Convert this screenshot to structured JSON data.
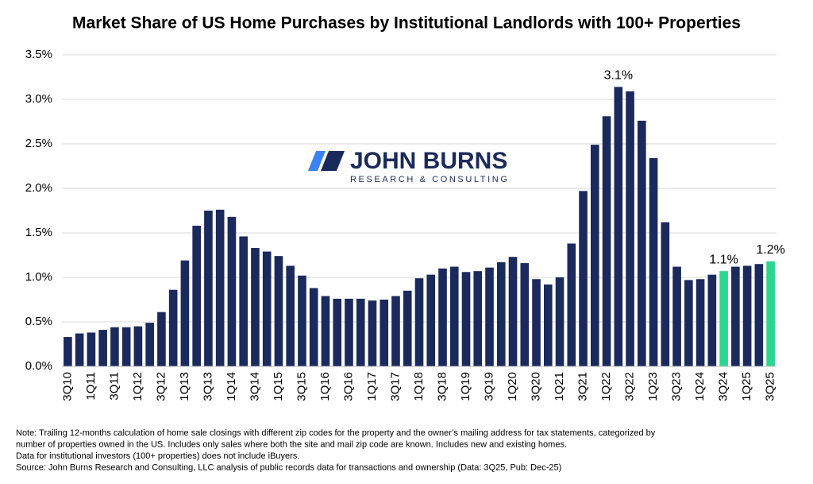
{
  "chart_data": {
    "type": "bar",
    "title": "Market Share of US Home Purchases by Institutional Landlords with 100+ Properties",
    "categories": [
      "3Q10",
      null,
      "1Q11",
      null,
      "3Q11",
      null,
      "1Q12",
      null,
      "3Q12",
      null,
      "1Q13",
      null,
      "3Q13",
      null,
      "1Q14",
      null,
      "3Q14",
      null,
      "1Q15",
      null,
      "3Q15",
      null,
      "1Q16",
      null,
      "3Q16",
      null,
      "1Q17",
      null,
      "3Q17",
      null,
      "1Q18",
      null,
      "3Q18",
      null,
      "1Q19",
      null,
      "3Q19",
      null,
      "1Q20",
      null,
      "3Q20",
      null,
      "1Q21",
      null,
      "3Q21",
      null,
      "1Q22",
      null,
      "3Q22",
      null,
      "1Q23",
      null,
      "3Q23",
      null,
      "1Q24",
      null,
      "3Q24",
      null,
      "1Q25",
      null,
      "3Q25"
    ],
    "values": [
      0.33,
      0.37,
      0.38,
      0.41,
      0.44,
      0.44,
      0.45,
      0.49,
      0.61,
      0.86,
      1.19,
      1.58,
      1.75,
      1.76,
      1.68,
      1.46,
      1.33,
      1.29,
      1.24,
      1.13,
      1.02,
      0.88,
      0.79,
      0.76,
      0.76,
      0.76,
      0.74,
      0.75,
      0.79,
      0.85,
      0.99,
      1.03,
      1.1,
      1.12,
      1.06,
      1.07,
      1.11,
      1.17,
      1.23,
      1.16,
      0.98,
      0.92,
      1.0,
      1.38,
      1.97,
      2.49,
      2.81,
      3.14,
      3.09,
      2.76,
      2.34,
      1.62,
      1.12,
      0.97,
      0.98,
      1.03,
      1.07,
      1.12,
      1.13,
      1.15,
      1.18
    ],
    "value_labels": [
      null,
      null,
      null,
      null,
      null,
      null,
      null,
      null,
      null,
      null,
      null,
      null,
      null,
      null,
      null,
      null,
      null,
      null,
      null,
      null,
      null,
      null,
      null,
      null,
      null,
      null,
      null,
      null,
      null,
      null,
      null,
      null,
      null,
      null,
      null,
      null,
      null,
      null,
      null,
      null,
      null,
      null,
      null,
      null,
      null,
      null,
      null,
      "3.1%",
      null,
      null,
      null,
      null,
      null,
      null,
      null,
      null,
      "1.1%",
      null,
      null,
      null,
      "1.2%"
    ],
    "colors": [
      "#1b2a5c",
      "#1b2a5c",
      "#1b2a5c",
      "#1b2a5c",
      "#1b2a5c",
      "#1b2a5c",
      "#1b2a5c",
      "#1b2a5c",
      "#1b2a5c",
      "#1b2a5c",
      "#1b2a5c",
      "#1b2a5c",
      "#1b2a5c",
      "#1b2a5c",
      "#1b2a5c",
      "#1b2a5c",
      "#1b2a5c",
      "#1b2a5c",
      "#1b2a5c",
      "#1b2a5c",
      "#1b2a5c",
      "#1b2a5c",
      "#1b2a5c",
      "#1b2a5c",
      "#1b2a5c",
      "#1b2a5c",
      "#1b2a5c",
      "#1b2a5c",
      "#1b2a5c",
      "#1b2a5c",
      "#1b2a5c",
      "#1b2a5c",
      "#1b2a5c",
      "#1b2a5c",
      "#1b2a5c",
      "#1b2a5c",
      "#1b2a5c",
      "#1b2a5c",
      "#1b2a5c",
      "#1b2a5c",
      "#1b2a5c",
      "#1b2a5c",
      "#1b2a5c",
      "#1b2a5c",
      "#1b2a5c",
      "#1b2a5c",
      "#1b2a5c",
      "#1b2a5c",
      "#1b2a5c",
      "#1b2a5c",
      "#1b2a5c",
      "#1b2a5c",
      "#1b2a5c",
      "#1b2a5c",
      "#1b2a5c",
      "#1b2a5c",
      "#2bd68f",
      "#1b2a5c",
      "#1b2a5c",
      "#1b2a5c",
      "#2bd68f"
    ],
    "ylim": [
      0,
      3.5
    ],
    "yticks": [
      {
        "value": 0,
        "label": "0.0%"
      },
      {
        "value": 0.5,
        "label": "0.5%"
      },
      {
        "value": 1,
        "label": "1.0%"
      },
      {
        "value": 1.5,
        "label": "1.5%"
      },
      {
        "value": 2,
        "label": "2.0%"
      },
      {
        "value": 2.5,
        "label": "2.5%"
      },
      {
        "value": 3,
        "label": "3.0%"
      },
      {
        "value": 3.5,
        "label": "3.5%"
      }
    ],
    "grid": true,
    "logo": {
      "name": "JOHN BURNS",
      "tagline": "RESEARCH & CONSULTING"
    },
    "notes": [
      "Note: Trailing 12-months calculation of home sale closings with different zip codes for the property and the owner’s mailing address for tax statements, categorized by",
      "number of properties owned in the US. Includes only sales where both the site and mail zip code are known. Includes new and existing homes.",
      "Data for institutional investors (100+ properties) does not include iBuyers.",
      "Source: John Burns Research and Consulting, LLC analysis of public records data for transactions and ownership (Data: 3Q25, Pub: Dec-25)"
    ]
  }
}
